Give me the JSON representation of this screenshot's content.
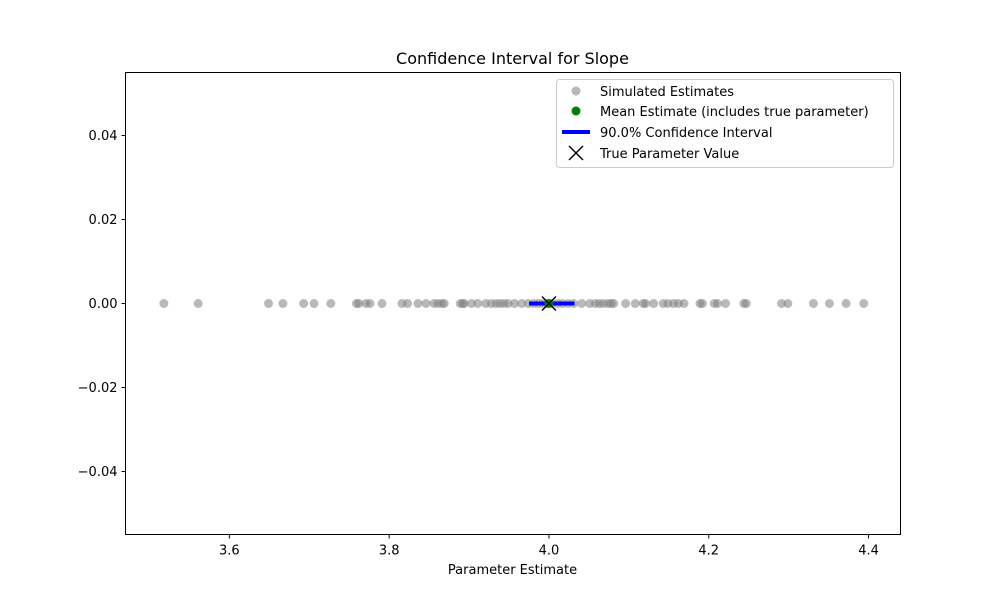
{
  "chart_data": {
    "type": "scatter",
    "title": "Confidence Interval for Slope",
    "xlabel": "Parameter Estimate",
    "ylabel": "",
    "xlim": [
      3.47,
      4.44
    ],
    "ylim": [
      -0.055,
      0.055
    ],
    "xticks": [
      3.6,
      3.8,
      4.0,
      4.2,
      4.4
    ],
    "xtick_labels": [
      "3.6",
      "3.8",
      "4.0",
      "4.2",
      "4.4"
    ],
    "yticks": [
      0.04,
      0.02,
      0.0,
      -0.02,
      -0.04
    ],
    "ytick_labels": [
      "0.04",
      "0.02",
      "0.00",
      "−0.02",
      "−0.04"
    ],
    "grid": false,
    "legend_position": "top-right",
    "legend": [
      "Simulated Estimates",
      "Mean Estimate (includes true parameter)",
      "90.0% Confidence Interval",
      "True Parameter Value"
    ],
    "colors": {
      "simulated": "#808080",
      "mean": "#008000",
      "ci": "#0000ff",
      "true": "#000000"
    },
    "simulated_estimates": [
      3.518,
      3.561,
      3.649,
      3.667,
      3.693,
      3.706,
      3.727,
      3.759,
      3.762,
      3.771,
      3.776,
      3.791,
      3.816,
      3.823,
      3.836,
      3.846,
      3.856,
      3.861,
      3.866,
      3.869,
      3.889,
      3.892,
      3.894,
      3.903,
      3.911,
      3.921,
      3.928,
      3.934,
      3.939,
      3.944,
      3.949,
      3.957,
      3.966,
      3.974,
      3.981,
      3.987,
      3.993,
      3.998,
      4.004,
      4.011,
      4.017,
      4.024,
      4.031,
      4.041,
      4.051,
      4.058,
      4.063,
      4.068,
      4.074,
      4.078,
      4.081,
      4.096,
      4.108,
      4.118,
      4.121,
      4.131,
      4.143,
      4.149,
      4.156,
      4.162,
      4.169,
      4.189,
      4.192,
      4.207,
      4.211,
      4.221,
      4.244,
      4.247,
      4.291,
      4.299,
      4.331,
      4.351,
      4.372,
      4.394
    ],
    "mean_estimate": 4.0,
    "confidence_interval": [
      3.975,
      4.032
    ],
    "true_parameter": 4.0
  }
}
